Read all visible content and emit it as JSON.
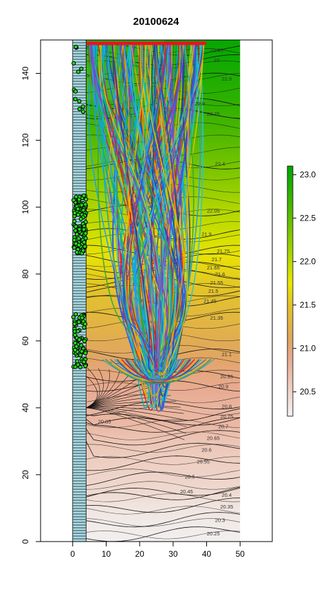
{
  "chart_data": {
    "type": "heatmap",
    "title": "20100624",
    "xlabel": "",
    "ylabel": "",
    "xlim": [
      -9.6,
      59.6
    ],
    "ylim": [
      0,
      150
    ],
    "x_ticks": [
      0,
      10,
      20,
      30,
      40,
      50
    ],
    "y_ticks": [
      0,
      20,
      40,
      60,
      80,
      100,
      120,
      140
    ],
    "field_extent": {
      "x": [
        0,
        50
      ],
      "y": [
        0,
        150
      ]
    },
    "grid": false,
    "colorbar": {
      "position": "right",
      "range": [
        20.22,
        23.1
      ],
      "ticks": [
        20.5,
        21.0,
        21.5,
        22.0,
        22.5,
        23.0
      ],
      "tick_labels": [
        "20.5",
        "21.0",
        "21.5",
        "22.0",
        "22.5",
        "23.0"
      ],
      "stops": [
        {
          "value": 20.22,
          "color": "#f2f2f2"
        },
        {
          "value": 20.9,
          "color": "#e8a88e"
        },
        {
          "value": 21.1,
          "color": "#e0a65f"
        },
        {
          "value": 21.5,
          "color": "#e3c22a"
        },
        {
          "value": 21.75,
          "color": "#e9e600"
        },
        {
          "value": 22.1,
          "color": "#a8d400"
        },
        {
          "value": 22.6,
          "color": "#4fb800"
        },
        {
          "value": 23.1,
          "color": "#00a600"
        }
      ]
    },
    "contours": [
      {
        "label": "23.05",
        "y": 147,
        "lx": 43
      },
      {
        "label": "23",
        "y": 144,
        "lx": 43
      },
      {
        "label": "22.9",
        "y": 138.5,
        "lx": 46
      },
      {
        "label": "22.8",
        "y": 131,
        "lx": 38
      },
      {
        "label": "22.75",
        "y": 128,
        "lx": 42
      },
      {
        "label": "22.4",
        "y": 113,
        "lx": 44
      },
      {
        "label": "22.05",
        "y": 99,
        "lx": 42
      },
      {
        "label": "21.9",
        "y": 92,
        "lx": 40
      },
      {
        "label": "21.75",
        "y": 87,
        "lx": 45
      },
      {
        "label": "21.7",
        "y": 84.5,
        "lx": 43
      },
      {
        "label": "21.65",
        "y": 82,
        "lx": 42
      },
      {
        "label": "21.6",
        "y": 80,
        "lx": 44
      },
      {
        "label": "21.55",
        "y": 77.5,
        "lx": 43
      },
      {
        "label": "21.5",
        "y": 75,
        "lx": 42
      },
      {
        "label": "21.45",
        "y": 72,
        "lx": 41
      },
      {
        "label": "21.35",
        "y": 67,
        "lx": 43
      },
      {
        "label": "21.1",
        "y": 56,
        "lx": 46
      },
      {
        "label": "20.95",
        "y": 49.5,
        "lx": 46
      },
      {
        "label": "20.9",
        "y": 46.5,
        "lx": 45
      },
      {
        "label": "20.8",
        "y": 40.5,
        "lx": 46
      },
      {
        "label": "20.85",
        "y": 36,
        "lx": 9.5
      },
      {
        "label": "20.75",
        "y": 37.5,
        "lx": 46
      },
      {
        "label": "20.7",
        "y": 34.5,
        "lx": 45
      },
      {
        "label": "20.65",
        "y": 31,
        "lx": 42
      },
      {
        "label": "20.6",
        "y": 27.5,
        "lx": 40
      },
      {
        "label": "20.55",
        "y": 24,
        "lx": 39
      },
      {
        "label": "20.5",
        "y": 19.5,
        "lx": 35
      },
      {
        "label": "20.45",
        "y": 15,
        "lx": 34
      },
      {
        "label": "20.4",
        "y": 14,
        "lx": 46
      },
      {
        "label": "20.35",
        "y": 10.5,
        "lx": 46
      },
      {
        "label": "20.3",
        "y": 6.5,
        "lx": 44
      },
      {
        "label": "20.25",
        "y": 2.5,
        "lx": 42
      }
    ],
    "release_line": {
      "x": [
        4.5,
        39.5
      ],
      "y": 149
    },
    "convergence_point": {
      "x": 25.5,
      "y": 50.5
    },
    "series": [
      {
        "colors": [
          "#1f3fb0",
          "#d62222",
          "#19a0ff",
          "#8a3fd6",
          "#28c8c8",
          "#32a83a",
          "#ff9900",
          "#2d57e6",
          "#e0c400",
          "#00b5b5"
        ]
      }
    ],
    "deposition_clusters": [
      {
        "y_range": [
          128,
          149
        ]
      },
      {
        "y_range": [
          86,
          104
        ]
      },
      {
        "y_range": [
          52,
          68
        ]
      }
    ]
  }
}
